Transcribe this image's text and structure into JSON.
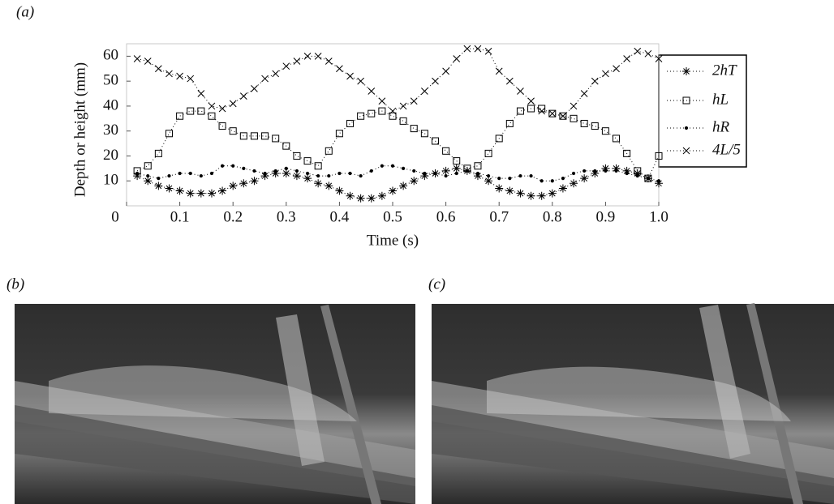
{
  "panel_labels": [
    "(a)",
    "(b)",
    "(c)"
  ],
  "chart_data": {
    "type": "line",
    "x_label": "Time (s)",
    "y_label": "Depth or height (mm)",
    "x": [
      0.02,
      0.04,
      0.06,
      0.08,
      0.1,
      0.12,
      0.14,
      0.16,
      0.18,
      0.2,
      0.22,
      0.24,
      0.26,
      0.28,
      0.3,
      0.32,
      0.34,
      0.36,
      0.38,
      0.4,
      0.42,
      0.44,
      0.46,
      0.48,
      0.5,
      0.52,
      0.54,
      0.56,
      0.58,
      0.6,
      0.62,
      0.64,
      0.66,
      0.68,
      0.7,
      0.72,
      0.74,
      0.76,
      0.78,
      0.8,
      0.82,
      0.84,
      0.86,
      0.88,
      0.9,
      0.92,
      0.94,
      0.96,
      0.98,
      1
    ],
    "xlim": [
      0,
      1
    ],
    "ylim": [
      0,
      65
    ],
    "xticks": [
      0,
      0.1,
      0.2,
      0.3,
      0.4,
      0.5,
      0.6,
      0.7,
      0.8,
      0.9,
      {
        "value": 1,
        "label": "1.0"
      }
    ],
    "yticks": [
      10,
      20,
      30,
      40,
      50,
      60
    ],
    "line_style": "dotted",
    "color": "#000000",
    "legend": "right",
    "series": [
      {
        "name": "2hT",
        "marker": "star",
        "values": [
          12,
          10,
          8,
          7,
          6,
          5,
          5,
          5,
          6,
          8,
          9,
          10,
          12,
          13,
          13,
          12,
          11,
          9,
          8,
          6,
          4,
          3,
          3,
          4,
          6,
          8,
          10,
          12,
          13,
          14,
          15,
          14,
          12,
          10,
          7,
          6,
          5,
          4,
          4,
          5,
          7,
          9,
          11,
          13,
          15,
          15,
          14,
          13,
          11,
          9
        ]
      },
      {
        "name": "hL",
        "marker": "square",
        "values": [
          14,
          16,
          21,
          29,
          36,
          38,
          38,
          36,
          32,
          30,
          28,
          28,
          28,
          27,
          24,
          20,
          18,
          16,
          22,
          29,
          33,
          36,
          37,
          38,
          36,
          34,
          31,
          29,
          26,
          22,
          18,
          15,
          16,
          21,
          27,
          33,
          38,
          39,
          39,
          37,
          36,
          35,
          33,
          32,
          30,
          27,
          21,
          14,
          11,
          20
        ]
      },
      {
        "name": "hR",
        "marker": "dot",
        "values": [
          13,
          12,
          11,
          12,
          13,
          13,
          12,
          13,
          16,
          16,
          15,
          14,
          13,
          14,
          15,
          14,
          13,
          12,
          12,
          13,
          13,
          12,
          14,
          16,
          16,
          15,
          14,
          13,
          13,
          12,
          13,
          14,
          13,
          12,
          11,
          11,
          12,
          12,
          10,
          10,
          11,
          13,
          14,
          14,
          14,
          14,
          13,
          12,
          11,
          10
        ]
      },
      {
        "name": "4L/5",
        "marker": "cross",
        "values": [
          59,
          58,
          55,
          53,
          52,
          51,
          45,
          40,
          39,
          41,
          44,
          47,
          51,
          53,
          56,
          58,
          60,
          60,
          58,
          55,
          52,
          50,
          46,
          42,
          38,
          40,
          42,
          46,
          50,
          54,
          59,
          63,
          63,
          62,
          54,
          50,
          46,
          42,
          38,
          37,
          36,
          40,
          45,
          50,
          53,
          55,
          59,
          62,
          61,
          59
        ]
      }
    ]
  }
}
